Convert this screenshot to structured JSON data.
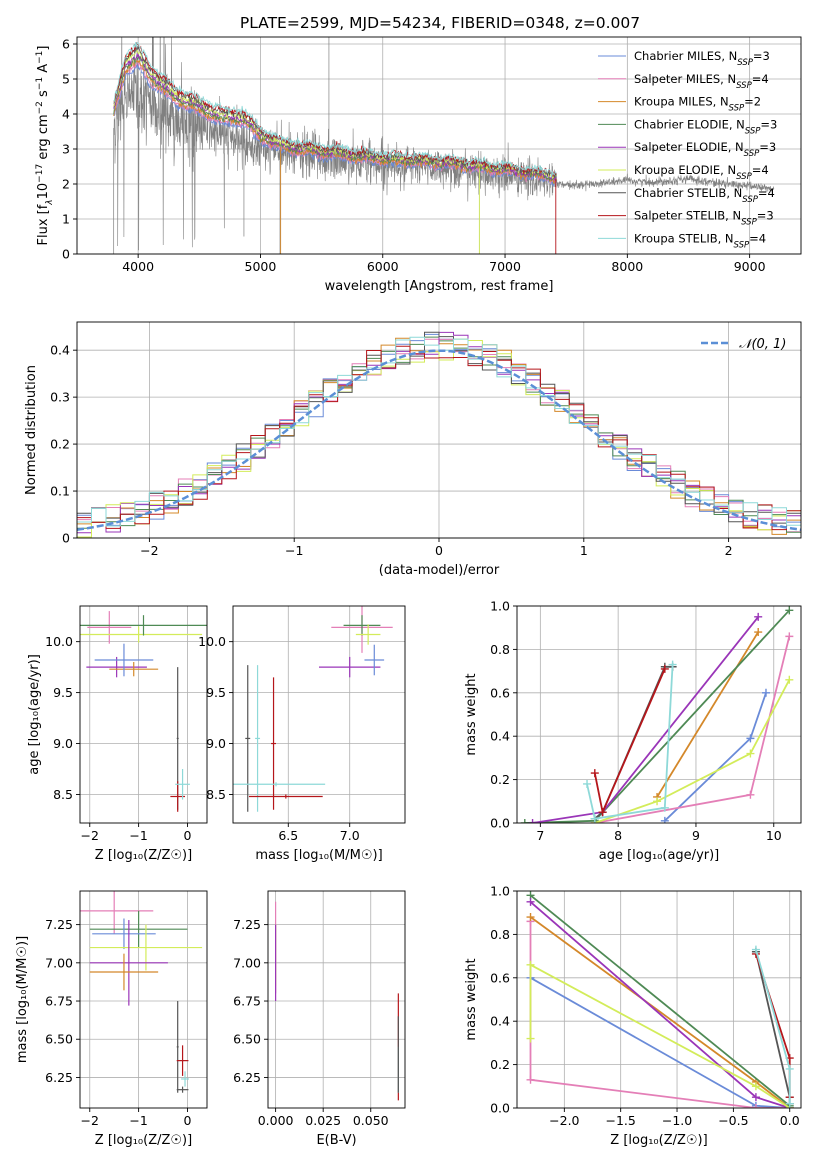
{
  "figure": {
    "title": "PLATE=2599, MJD=54234, FIBERID=0348, z=0.007"
  },
  "legend_entries": [
    {
      "name": "Chabrier MILES, N",
      "sub": "SSP",
      "tail": "=3",
      "color": "#6a8bd8"
    },
    {
      "name": "Salpeter MILES, N",
      "sub": "SSP",
      "tail": "=4",
      "color": "#e47fb7"
    },
    {
      "name": "Kroupa MILES, N",
      "sub": "SSP",
      "tail": "=2",
      "color": "#d4882a"
    },
    {
      "name": "Chabrier ELODIE, N",
      "sub": "SSP",
      "tail": "=3",
      "color": "#4f8a55"
    },
    {
      "name": "Salpeter ELODIE, N",
      "sub": "SSP",
      "tail": "=3",
      "color": "#9a35b8"
    },
    {
      "name": "Kroupa ELODIE, N",
      "sub": "SSP",
      "tail": "=4",
      "color": "#d3ec5a"
    },
    {
      "name": "Chabrier STELIB, N",
      "sub": "SSP",
      "tail": "=4",
      "color": "#555555"
    },
    {
      "name": "Salpeter STELIB, N",
      "sub": "SSP",
      "tail": "=3",
      "color": "#b5161b"
    },
    {
      "name": "Kroupa STELIB, N",
      "sub": "SSP",
      "tail": "=4",
      "color": "#8ed9d8"
    }
  ],
  "chart_data": [
    {
      "id": "spectrum",
      "type": "line",
      "title": "PLATE=2599, MJD=54234, FIBERID=0348, z=0.007",
      "xlabel": "wavelength [Angstrom, rest frame]",
      "ylabel_parts": [
        "Flux [f",
        "λ",
        "10",
        "−17",
        " erg cm",
        "−2",
        " s",
        "−1",
        " A",
        "−1",
        "]"
      ],
      "xlim": [
        3500,
        9420
      ],
      "ylim": [
        0,
        6.2
      ],
      "xticks": [
        4000,
        5000,
        6000,
        7000,
        8000,
        9000
      ],
      "yticks": [
        0,
        1,
        2,
        3,
        4,
        5,
        6
      ],
      "data_color": "#808080",
      "data_range": [
        3800,
        9200
      ],
      "model_range": [
        3800,
        7420
      ],
      "model_anchors": {
        "x": [
          3800,
          3900,
          4000,
          4100,
          4300,
          4500,
          4700,
          4860,
          5000,
          5200,
          5500,
          6000,
          6500,
          7000,
          7420
        ],
        "y": [
          4.0,
          5.3,
          5.5,
          5.0,
          4.4,
          4.1,
          3.8,
          3.8,
          3.3,
          3.0,
          2.85,
          2.65,
          2.55,
          2.35,
          2.15
        ]
      },
      "data_anchors": {
        "x": [
          3800,
          3900,
          4000,
          4100,
          4300,
          4500,
          4700,
          5000,
          5500,
          6000,
          6500,
          7000,
          7400,
          7500,
          7700,
          8000,
          8200,
          8500,
          8800,
          9000,
          9200
        ],
        "y": [
          3.6,
          4.5,
          4.6,
          4.2,
          3.8,
          3.6,
          3.4,
          3.0,
          2.75,
          2.6,
          2.45,
          2.25,
          2.05,
          1.95,
          2.0,
          2.1,
          2.05,
          2.15,
          2.0,
          1.95,
          1.85
        ]
      }
    },
    {
      "id": "residuals",
      "type": "step",
      "xlabel": "(data-model)/error",
      "ylabel": "Normed distribution",
      "xlim": [
        -2.5,
        2.5
      ],
      "ylim": [
        0,
        0.46
      ],
      "xticks": [
        -2,
        -1,
        0,
        1,
        2
      ],
      "yticks": [
        0.0,
        0.1,
        0.2,
        0.3,
        0.4
      ],
      "legend": {
        "label": "𝒩(0, 1)",
        "position": "upper right"
      },
      "bin_width": 0.1,
      "gaussian": {
        "mean": 0,
        "sigma": 1,
        "color": "#5b8fd6"
      }
    },
    {
      "id": "age-vs-Z",
      "type": "errorbar",
      "xlabel": "Z [log₁₀(Z/Z☉)]",
      "ylabel": "age  [log₁₀(age/yr)]",
      "xlim": [
        -2.2,
        0.4
      ],
      "ylim": [
        8.22,
        10.35
      ],
      "xticks": [
        -2,
        -1,
        0
      ],
      "yticks": [
        8.5,
        9.0,
        9.5,
        10.0
      ],
      "points": [
        {
          "c": 1,
          "x": -1.6,
          "xerr": 0.45,
          "y": 10.14,
          "yerr": 0.16
        },
        {
          "c": 4,
          "x": -1.45,
          "xerr": 0.62,
          "y": 9.75,
          "yerr": 0.1
        },
        {
          "c": 2,
          "x": -1.1,
          "xerr": 0.5,
          "y": 9.73,
          "yerr": 0.07
        },
        {
          "c": 0,
          "x": -1.3,
          "xerr": 0.6,
          "y": 9.82,
          "yerr": 0.16
        },
        {
          "c": 5,
          "x": -1.0,
          "xerr": 1.3,
          "y": 10.07,
          "yerr": 0.08
        },
        {
          "c": 3,
          "x": -0.9,
          "xerr": 1.3,
          "y": 10.16,
          "yerr": 0.1
        },
        {
          "c": 6,
          "x": -0.2,
          "xerr": 0.02,
          "y": 9.05,
          "yerr": 0.7
        },
        {
          "c": 7,
          "x": -0.2,
          "xerr": 0.15,
          "y": 8.48,
          "yerr": 0.15
        },
        {
          "c": 8,
          "x": -0.1,
          "xerr": 0.15,
          "y": 8.6,
          "yerr": 0.15
        }
      ]
    },
    {
      "id": "age-vs-mass",
      "type": "errorbar",
      "xlabel": "mass [log₁₀(M/M☉)]",
      "ylabel": "",
      "xlim": [
        6.05,
        7.45
      ],
      "ylim": [
        8.22,
        10.35
      ],
      "xticks": [
        6.5,
        7.0
      ],
      "yticks": [
        8.5,
        9.0,
        9.5,
        10.0
      ],
      "points": [
        {
          "c": 1,
          "x": 7.1,
          "xerr": 0.25,
          "y": 10.14,
          "yerr": 0.25
        },
        {
          "c": 4,
          "x": 7.0,
          "xerr": 0.25,
          "y": 9.75,
          "yerr": 0.1
        },
        {
          "c": 3,
          "x": 7.1,
          "xerr": 0.15,
          "y": 10.16,
          "yerr": 0.1
        },
        {
          "c": 5,
          "x": 7.15,
          "xerr": 0.1,
          "y": 10.07,
          "yerr": 0.1
        },
        {
          "c": 0,
          "x": 7.2,
          "xerr": 0.08,
          "y": 9.82,
          "yerr": 0.15
        },
        {
          "c": 6,
          "x": 6.17,
          "xerr": 0.02,
          "y": 9.05,
          "yerr": 0.72
        },
        {
          "c": 8,
          "x": 6.25,
          "xerr": 0.02,
          "y": 9.05,
          "yerr": 0.72
        },
        {
          "c": 7,
          "x": 6.38,
          "xerr": 0.02,
          "y": 9.0,
          "yerr": 0.65
        },
        {
          "c": 8,
          "x": 6.4,
          "xerr": 0.4,
          "y": 8.6,
          "yerr": 0.02
        },
        {
          "c": 7,
          "x": 6.48,
          "xerr": 0.3,
          "y": 8.48,
          "yerr": 0.02
        }
      ]
    },
    {
      "id": "mass-weight-vs-age",
      "type": "line",
      "xlabel": "age  [log₁₀(age/yr)]",
      "ylabel": "mass weight",
      "xlim": [
        6.7,
        10.35
      ],
      "ylim": [
        0,
        1.0
      ],
      "xticks": [
        7,
        8,
        9,
        10
      ],
      "yticks": [
        0.0,
        0.2,
        0.4,
        0.6,
        0.8,
        1.0
      ],
      "series": [
        {
          "c": 0,
          "x": [
            8.6,
            9.7,
            9.9
          ],
          "y": [
            0.01,
            0.39,
            0.6
          ]
        },
        {
          "c": 1,
          "x": [
            7.7,
            9.7,
            10.2
          ],
          "y": [
            0.0,
            0.13,
            0.86
          ]
        },
        {
          "c": 2,
          "x": [
            8.5,
            9.8
          ],
          "y": [
            0.12,
            0.88
          ]
        },
        {
          "c": 3,
          "x": [
            6.8,
            7.7,
            10.2
          ],
          "y": [
            0.0,
            0.01,
            0.98
          ]
        },
        {
          "c": 4,
          "x": [
            6.9,
            7.8,
            9.8
          ],
          "y": [
            0.0,
            0.05,
            0.95
          ]
        },
        {
          "c": 5,
          "x": [
            7.7,
            8.5,
            9.7,
            10.2
          ],
          "y": [
            0.0,
            0.1,
            0.32,
            0.66
          ]
        },
        {
          "c": 6,
          "x": [
            7.7,
            7.8,
            8.6,
            8.7
          ],
          "y": [
            0.02,
            0.05,
            0.72,
            0.72
          ]
        },
        {
          "c": 7,
          "x": [
            7.7,
            7.8,
            8.6
          ],
          "y": [
            0.23,
            0.05,
            0.71
          ]
        },
        {
          "c": 8,
          "x": [
            7.6,
            7.7,
            8.6,
            8.7
          ],
          "y": [
            0.18,
            0.02,
            0.07,
            0.73
          ]
        }
      ]
    },
    {
      "id": "mass-vs-Z",
      "type": "errorbar",
      "xlabel": "Z [log₁₀(Z/Z☉)]",
      "ylabel": "mass [log₁₀(M/M☉)]",
      "xlim": [
        -2.2,
        0.4
      ],
      "ylim": [
        6.05,
        7.47
      ],
      "xticks": [
        -2,
        -1,
        0
      ],
      "yticks": [
        6.25,
        6.5,
        6.75,
        7.0,
        7.25
      ],
      "points": [
        {
          "c": 1,
          "x": -1.5,
          "xerr": 0.8,
          "y": 7.34,
          "yerr": 0.15
        },
        {
          "c": 3,
          "x": -1.0,
          "xerr": 1.0,
          "y": 7.22,
          "yerr": 0.12
        },
        {
          "c": 0,
          "x": -1.3,
          "xerr": 0.65,
          "y": 7.19,
          "yerr": 0.1
        },
        {
          "c": 5,
          "x": -0.85,
          "xerr": 1.15,
          "y": 7.1,
          "yerr": 0.15
        },
        {
          "c": 4,
          "x": -1.2,
          "xerr": 0.8,
          "y": 7.0,
          "yerr": 0.28
        },
        {
          "c": 2,
          "x": -1.3,
          "xerr": 0.7,
          "y": 6.94,
          "yerr": 0.12
        },
        {
          "c": 6,
          "x": -0.2,
          "xerr": 0.02,
          "y": 6.45,
          "yerr": 0.3
        },
        {
          "c": 7,
          "x": -0.1,
          "xerr": 0.12,
          "y": 6.36,
          "yerr": 0.1
        },
        {
          "c": 8,
          "x": -0.05,
          "xerr": 0.08,
          "y": 6.24,
          "yerr": 0.05
        },
        {
          "c": 6,
          "x": -0.1,
          "xerr": 0.12,
          "y": 6.17,
          "yerr": 0.02
        }
      ]
    },
    {
      "id": "mass-vs-ebv",
      "type": "errorbar",
      "xlabel": "E(B-V)",
      "ylabel": "",
      "xlim": [
        -0.004,
        0.068
      ],
      "ylim": [
        6.05,
        7.47
      ],
      "xticks": [
        0.0,
        0.025,
        0.05
      ],
      "yticks": [
        6.25,
        6.5,
        6.75,
        7.0,
        7.25
      ],
      "points": [
        {
          "c": 1,
          "x": 0.0,
          "xerr": 0.0,
          "y": 7.1,
          "yerr": 0.3
        },
        {
          "c": 5,
          "x": 0.0,
          "xerr": 0.0,
          "y": 7.05,
          "yerr": 0.2
        },
        {
          "c": 4,
          "x": 0.0,
          "xerr": 0.0,
          "y": 7.0,
          "yerr": 0.25
        },
        {
          "c": 7,
          "x": 0.0645,
          "xerr": 0.0,
          "y": 6.45,
          "yerr": 0.35
        },
        {
          "c": 8,
          "x": 0.0645,
          "xerr": 0.0,
          "y": 6.3,
          "yerr": 0.15
        },
        {
          "c": 6,
          "x": 0.0645,
          "xerr": 0.0,
          "y": 6.4,
          "yerr": 0.25
        }
      ]
    },
    {
      "id": "mass-weight-vs-Z",
      "type": "line",
      "xlabel": "Z [log₁₀(Z/Z☉)]",
      "ylabel": "mass weight",
      "xlim": [
        -2.42,
        0.1
      ],
      "ylim": [
        0,
        1.0
      ],
      "xticks": [
        -2.0,
        -1.5,
        -1.0,
        -0.5,
        0.0
      ],
      "yticks": [
        0.0,
        0.2,
        0.4,
        0.6,
        0.8,
        1.0
      ],
      "series": [
        {
          "c": 0,
          "x": [
            -2.3,
            -0.3,
            0.0
          ],
          "y": [
            0.6,
            0.01,
            0.0
          ]
        },
        {
          "c": 1,
          "x": [
            -2.3,
            -2.3,
            -0.3,
            0.0
          ],
          "y": [
            0.86,
            0.13,
            0.0,
            0.0
          ]
        },
        {
          "c": 2,
          "x": [
            -2.3,
            -0.3,
            0.0
          ],
          "y": [
            0.88,
            0.12,
            0.0
          ]
        },
        {
          "c": 3,
          "x": [
            -2.3,
            0.0,
            0.0
          ],
          "y": [
            0.98,
            0.01,
            0.0
          ]
        },
        {
          "c": 4,
          "x": [
            -2.3,
            -0.3,
            0.0
          ],
          "y": [
            0.95,
            0.05,
            0.0
          ]
        },
        {
          "c": 5,
          "x": [
            -2.3,
            -2.3,
            -0.3,
            0.0
          ],
          "y": [
            0.32,
            0.66,
            0.1,
            0.0
          ]
        },
        {
          "c": 6,
          "x": [
            -0.3,
            0.0,
            0.0
          ],
          "y": [
            0.72,
            0.05,
            0.02
          ]
        },
        {
          "c": 7,
          "x": [
            -0.3,
            0.0,
            0.0
          ],
          "y": [
            0.71,
            0.23,
            0.05
          ]
        },
        {
          "c": 8,
          "x": [
            -0.3,
            0.0,
            0.0
          ],
          "y": [
            0.73,
            0.18,
            0.02
          ]
        }
      ]
    }
  ]
}
